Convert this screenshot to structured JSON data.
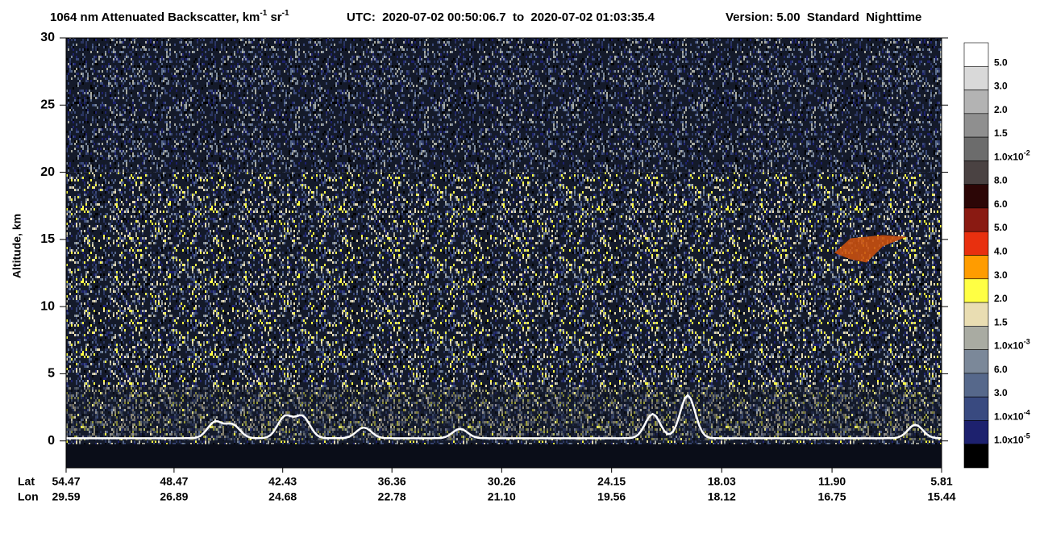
{
  "chart_data": {
    "type": "curtain",
    "title": [
      "1064 nm Attenuated Backscatter, km",
      "-1",
      " sr",
      "-1"
    ],
    "time_range": "UTC:  2020-07-02 00:50:06.7  to  2020-07-02 01:03:35.4",
    "version": "Version: 5.00  Standard  Nighttime",
    "ylabel": "Altitude, km",
    "ylim": [
      -2,
      30
    ],
    "yticks": [
      0,
      5,
      10,
      15,
      20,
      25,
      30
    ],
    "x_row_labels": [
      "Lat",
      "Lon"
    ],
    "xlim": [
      54.47,
      5.81
    ],
    "xticks": [
      54.47,
      48.47,
      42.43,
      36.36,
      30.26,
      24.15,
      18.03,
      {
        "value": 11.9,
        "label": "11.90"
      },
      5.81
    ],
    "xticks2": [
      29.59,
      26.89,
      24.68,
      22.78,
      {
        "value": 21.1,
        "label": "21.10"
      },
      19.56,
      18.12,
      16.75,
      15.44
    ],
    "colorbar": {
      "colors": [
        "#ffffff",
        "#d9d9d9",
        "#b3b3b3",
        "#8f8f8f",
        "#6c6c6c",
        "#4a4242",
        "#2c0606",
        "#8a1a12",
        "#e8300f",
        "#ff9c00",
        "#ffff44",
        "#e9ddb2",
        "#a9aba2",
        "#7b8899",
        "#56688b",
        "#394a80",
        "#1d216e",
        "#000000"
      ],
      "labels": [
        [
          "5.0"
        ],
        [
          "3.0"
        ],
        [
          "2.0"
        ],
        [
          "1.5"
        ],
        [
          "1.0x10",
          "-2"
        ],
        [
          "8.0"
        ],
        [
          "6.0"
        ],
        [
          "5.0"
        ],
        [
          "4.0"
        ],
        [
          "3.0"
        ],
        [
          "2.0"
        ],
        [
          "1.5"
        ],
        [
          "1.0x10",
          "-3"
        ],
        [
          "6.0"
        ],
        [
          "3.0"
        ],
        [
          "1.0x10",
          "-4"
        ],
        [
          "1.0x10",
          "-5"
        ]
      ]
    }
  }
}
